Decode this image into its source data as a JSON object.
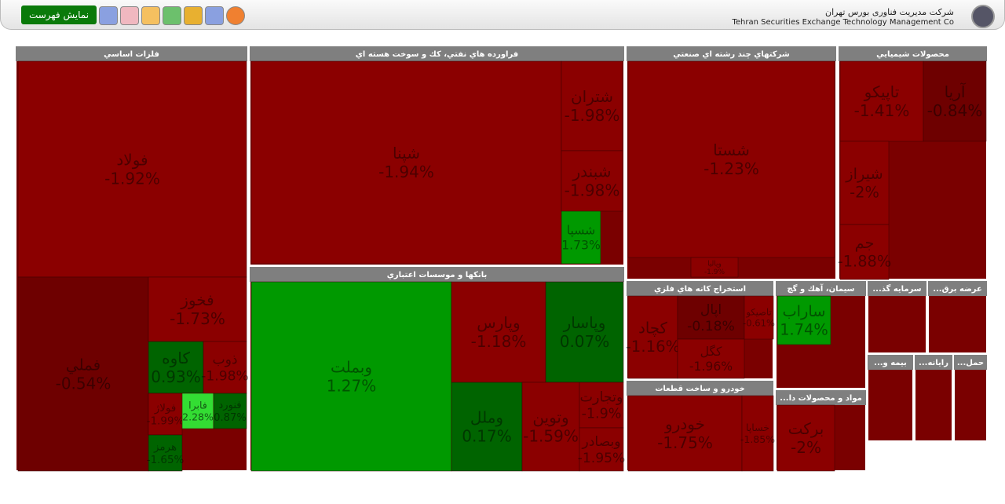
{
  "header": {
    "button": "نمایش فهرست",
    "org_fa": "شرکت مدیریت فناوری بورس تهران",
    "org_en": "Tehran Securities Exchange Technology Management Co"
  },
  "sectors": [
    {
      "title": "فلزات اساسي",
      "tiles": [
        {
          "symbol": "فولاد",
          "change": "-1.92%"
        },
        {
          "symbol": "فملي",
          "change": "-0.54%"
        },
        {
          "symbol": "فخوز",
          "change": "-1.73%"
        },
        {
          "symbol": "كاوه",
          "change": "0.93%"
        },
        {
          "symbol": "ذوب",
          "change": "-1.98%"
        },
        {
          "symbol": "فولاژ",
          "change": "-1.99%"
        },
        {
          "symbol": "فابرا",
          "change": "2.28%"
        },
        {
          "symbol": "فنورد",
          "change": "0.87%"
        },
        {
          "symbol": "هرمز",
          "change": "-1.65%"
        }
      ]
    },
    {
      "title": "فراورده هاي نفتي، كك و سوخت هسته اي",
      "tiles": [
        {
          "symbol": "شپنا",
          "change": "-1.94%"
        },
        {
          "symbol": "شتران",
          "change": "-1.98%"
        },
        {
          "symbol": "شبندر",
          "change": "-1.98%"
        },
        {
          "symbol": "شسپا",
          "change": "1.73%"
        }
      ]
    },
    {
      "title": "شركتهاي چند رشته اي صنعتي",
      "tiles": [
        {
          "symbol": "شستا",
          "change": "-1.23%"
        },
        {
          "symbol": "وپاليا",
          "change": "-1.9%"
        }
      ]
    },
    {
      "title": "محصولات شيميايي",
      "tiles": [
        {
          "symbol": "تاپيكو",
          "change": "-1.41%"
        },
        {
          "symbol": "آريا",
          "change": "-0.84%"
        },
        {
          "symbol": "شيراز",
          "change": "-2%"
        },
        {
          "symbol": "جم",
          "change": "-1.88%"
        }
      ]
    },
    {
      "title": "بانكها و موسسات اعتباري",
      "tiles": [
        {
          "symbol": "وبملت",
          "change": "1.27%"
        },
        {
          "symbol": "وپارس",
          "change": "-1.18%"
        },
        {
          "symbol": "وپاسار",
          "change": "0.07%"
        },
        {
          "symbol": "وملل",
          "change": "0.17%"
        },
        {
          "symbol": "وتوين",
          "change": "-1.59%"
        },
        {
          "symbol": "وتجارت",
          "change": "-1.9%"
        },
        {
          "symbol": "وبصادر",
          "change": "-1.95%"
        }
      ]
    },
    {
      "title": "استخراج كانه هاي فلزي",
      "tiles": [
        {
          "symbol": "كچاد",
          "change": "-1.16%"
        },
        {
          "symbol": "اپال",
          "change": "-0.18%"
        },
        {
          "symbol": "كگل",
          "change": "-1.96%"
        },
        {
          "symbol": "تاصيكو",
          "change": "-0.61%"
        }
      ]
    },
    {
      "title": "سيمان، آهك و گچ",
      "tiles": [
        {
          "symbol": "ساراب",
          "change": "1.74%"
        }
      ]
    },
    {
      "title": "خودرو و ساخت قطعات",
      "tiles": [
        {
          "symbol": "خودرو",
          "change": "-1.75%"
        },
        {
          "symbol": "خساپا",
          "change": "-1.85%"
        }
      ]
    },
    {
      "title": "...مواد و محصولات دا",
      "tiles": [
        {
          "symbol": "بركت",
          "change": "-2%"
        }
      ]
    },
    {
      "title": "...سرمايه گذ",
      "tiles": []
    },
    {
      "title": "...عرضه برق",
      "tiles": []
    },
    {
      "title": "...بيمه و",
      "tiles": []
    },
    {
      "title": "...رايانه",
      "tiles": []
    },
    {
      "title": "...حمل",
      "tiles": []
    }
  ]
}
